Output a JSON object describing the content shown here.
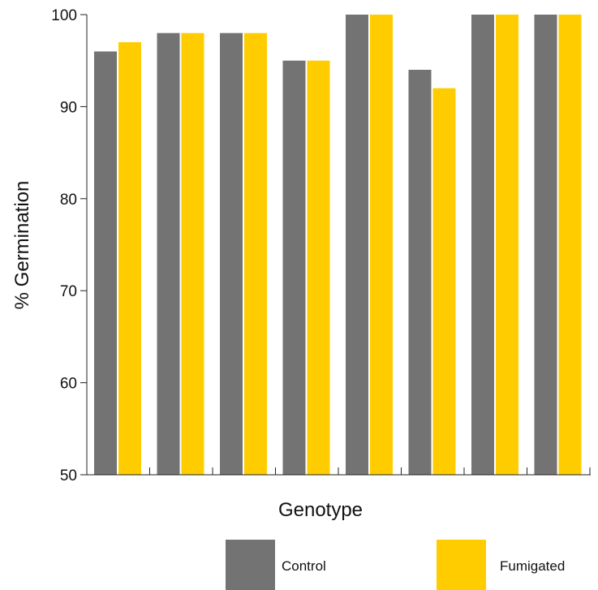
{
  "chart_data": {
    "type": "bar",
    "title": "",
    "xlabel": "Genotype",
    "ylabel": "% Germination",
    "ylim": [
      50,
      100
    ],
    "yticks": [
      50,
      60,
      70,
      80,
      90,
      100
    ],
    "categories": [
      "",
      "",
      "",
      "",
      "",
      "",
      "",
      ""
    ],
    "series": [
      {
        "name": "Control",
        "color": "#737373",
        "values": [
          96,
          98,
          98,
          95,
          100,
          94,
          100,
          100
        ]
      },
      {
        "name": "Fumigated",
        "color": "#ffcc00",
        "values": [
          97,
          98,
          98,
          95,
          100,
          92,
          100,
          100
        ]
      }
    ],
    "grid": false,
    "legend": "bottom"
  }
}
